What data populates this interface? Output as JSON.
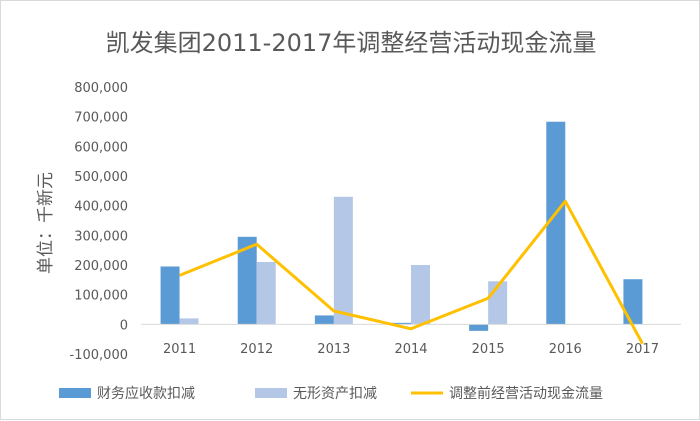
{
  "chart_data": {
    "type": "bar",
    "title": "凯发集团2011-2017年调整经营活动现金流量",
    "ylabel": "单位：千新元",
    "xlabel": "",
    "categories": [
      "2011",
      "2012",
      "2013",
      "2014",
      "2015",
      "2016",
      "2017"
    ],
    "y_ticks": [
      "800,000",
      "700,000",
      "600,000",
      "500,000",
      "400,000",
      "300,000",
      "200,000",
      "100,000",
      "0",
      "-100,000"
    ],
    "ylim": [
      -100000,
      800000
    ],
    "grid": false,
    "legend_position": "bottom",
    "series": [
      {
        "name": "财务应收款扣减",
        "type": "bar",
        "color": "#5b9bd5",
        "values": [
          195000,
          295000,
          30000,
          5000,
          -22000,
          683000,
          152000
        ]
      },
      {
        "name": "无形资产扣减",
        "type": "bar",
        "color": "#b4c7e7",
        "values": [
          20000,
          210000,
          430000,
          200000,
          145000,
          0,
          0
        ]
      },
      {
        "name": "调整前经营活动现金流量",
        "type": "line",
        "color": "#ffc000",
        "values": [
          165000,
          270000,
          45000,
          -15000,
          88000,
          415000,
          -65000
        ]
      }
    ]
  }
}
